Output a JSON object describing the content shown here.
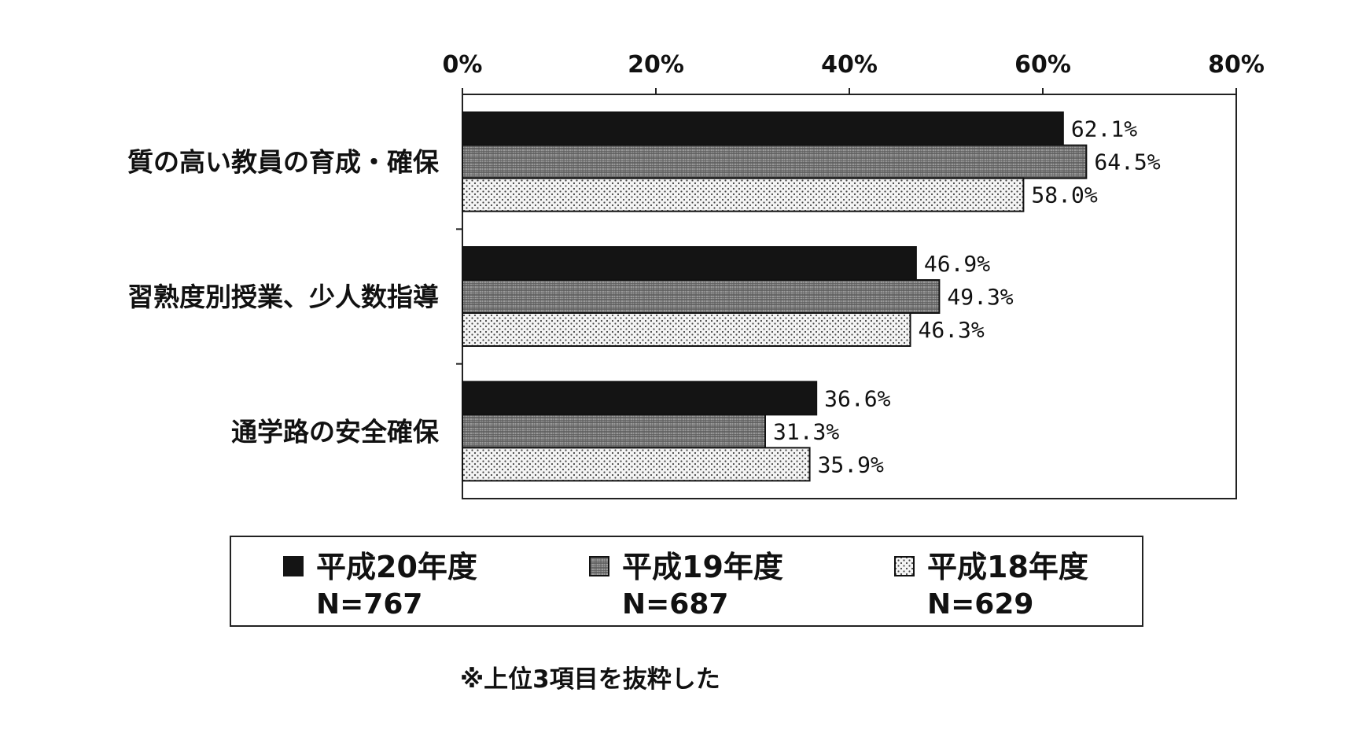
{
  "chart_data": {
    "type": "bar",
    "orientation": "horizontal",
    "categories": [
      "質の高い教員の育成・確保",
      "習熟度別授業、少人数指導",
      "通学路の安全確保"
    ],
    "series": [
      {
        "name": "平成20年度",
        "n_label": "N=767",
        "values": [
          62.1,
          46.9,
          36.6
        ],
        "value_labels": [
          "62.1%",
          "46.9%",
          "36.6%"
        ],
        "fill": "solid-black"
      },
      {
        "name": "平成19年度",
        "n_label": "N=687",
        "values": [
          64.5,
          49.3,
          31.3
        ],
        "value_labels": [
          "64.5%",
          "49.3%",
          "31.3%"
        ],
        "fill": "grid-gray"
      },
      {
        "name": "平成18年度",
        "n_label": "N=629",
        "values": [
          58.0,
          46.3,
          35.9
        ],
        "value_labels": [
          "58.0%",
          "46.3%",
          "35.9%"
        ],
        "fill": "dotted-light"
      }
    ],
    "x_ticks": [
      "0%",
      "20%",
      "40%",
      "60%",
      "80%"
    ],
    "xlim": [
      0,
      80
    ],
    "axis_position": "top",
    "grid": false,
    "legend_position": "bottom",
    "colors": {
      "bar_black": "#141414",
      "bar_gray": "#8a8a8a",
      "bar_light": "#f2f2f2",
      "axis": "#222222"
    }
  },
  "note": "※上位3項目を抜粋した"
}
